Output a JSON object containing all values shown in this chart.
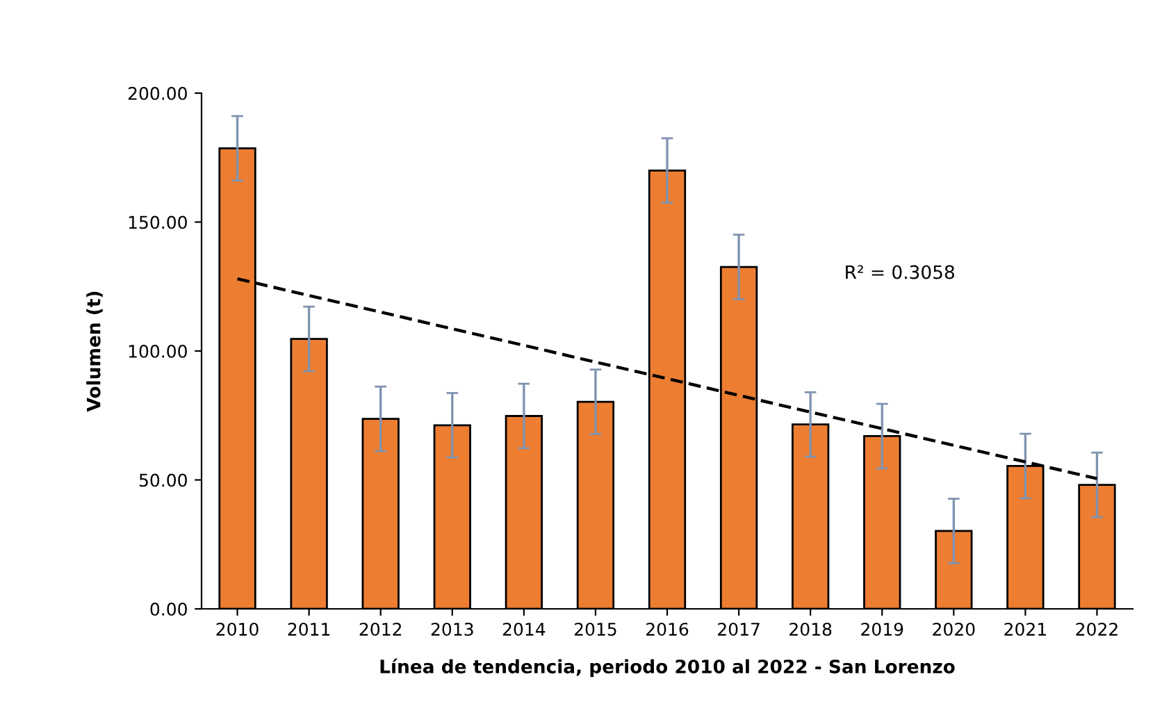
{
  "chart_data": {
    "type": "bar",
    "xlabel": "Línea de tendencia, periodo 2010 al 2022 - San Lorenzo",
    "ylabel": "Volumen (t)",
    "categories": [
      "2010",
      "2011",
      "2012",
      "2013",
      "2014",
      "2015",
      "2016",
      "2017",
      "2018",
      "2019",
      "2020",
      "2021",
      "2022"
    ],
    "series": [
      {
        "color": "#ed7d31",
        "values": [
          178.6,
          104.7,
          73.7,
          71.2,
          74.8,
          80.3,
          170.0,
          132.6,
          71.5,
          67.0,
          30.2,
          55.4,
          48.1
        ],
        "errors": [
          12.5,
          12.5,
          12.5,
          12.5,
          12.5,
          12.5,
          12.5,
          12.5,
          12.5,
          12.5,
          12.5,
          12.5,
          12.5
        ]
      },
      {
        "type": "line",
        "color": "#000000",
        "line_style": "dashed",
        "values": [
          128.0,
          121.5,
          115.1,
          108.6,
          102.2,
          95.7,
          89.3,
          82.8,
          76.3,
          69.9,
          63.4,
          57.0,
          50.5
        ]
      }
    ],
    "annotations": [
      "R² = 0.3058"
    ],
    "ylim": [
      0,
      200
    ],
    "yticks": [
      {
        "value": 0,
        "label": "0.00"
      },
      {
        "value": 50,
        "label": "50.00"
      },
      {
        "value": 100,
        "label": "100.00"
      },
      {
        "value": 150,
        "label": "150.00"
      },
      {
        "value": 200,
        "label": "200.00"
      }
    ],
    "grid": false,
    "legend": false
  }
}
